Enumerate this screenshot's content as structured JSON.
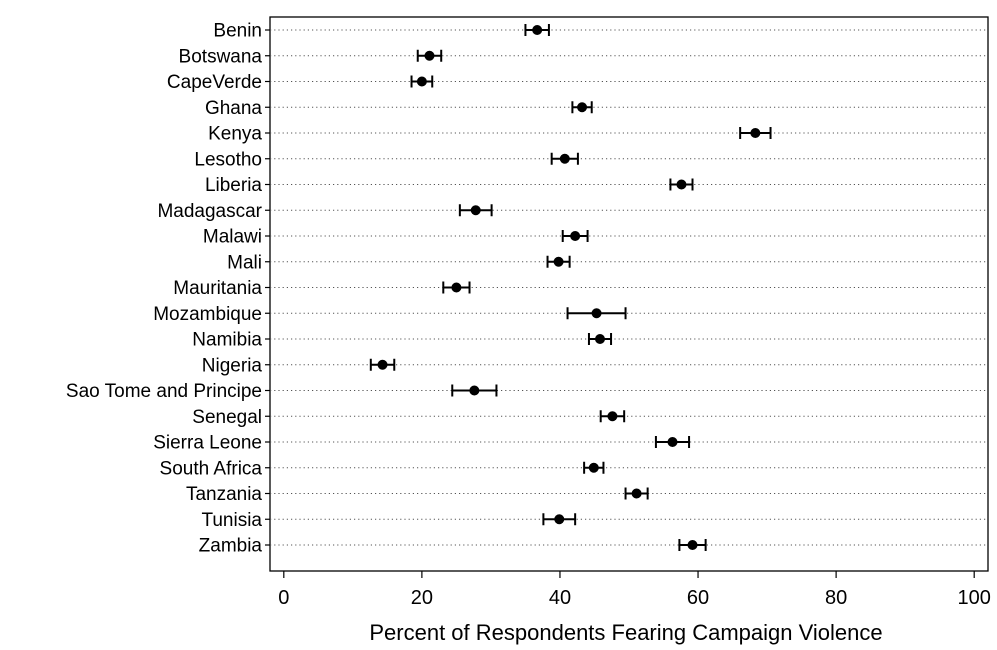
{
  "chart_data": {
    "type": "scatter",
    "title": "",
    "xlabel": "Percent of Respondents Fearing Campaign Violence",
    "ylabel": "",
    "xlim": [
      -2,
      102
    ],
    "xticks": [
      0,
      20,
      40,
      60,
      80,
      100
    ],
    "xtick_labels": [
      "0",
      "20",
      "40",
      "60",
      "80",
      "100"
    ],
    "grid": "horizontal dotted lines",
    "error_bars": true,
    "categories": [
      "Benin",
      "Botswana",
      "CapeVerde",
      "Ghana",
      "Kenya",
      "Lesotho",
      "Liberia",
      "Madagascar",
      "Malawi",
      "Mali",
      "Mauritania",
      "Mozambique",
      "Namibia",
      "Nigeria",
      "Sao Tome and Principe",
      "Senegal",
      "Sierra Leone",
      "South Africa",
      "Tanzania",
      "Tunisia",
      "Zambia"
    ],
    "values": [
      36.7,
      21.1,
      20.0,
      43.2,
      68.3,
      40.7,
      57.6,
      27.8,
      42.2,
      39.8,
      25.0,
      45.3,
      45.8,
      14.3,
      27.6,
      47.6,
      56.3,
      44.9,
      51.1,
      39.9,
      59.2
    ],
    "ci_low": [
      35.0,
      19.4,
      18.5,
      41.8,
      66.1,
      38.8,
      56.0,
      25.5,
      40.4,
      38.2,
      23.1,
      41.1,
      44.2,
      12.6,
      24.4,
      45.9,
      53.9,
      43.5,
      49.5,
      37.6,
      57.3
    ],
    "ci_high": [
      38.4,
      22.8,
      21.5,
      44.6,
      70.5,
      42.6,
      59.2,
      30.1,
      44.0,
      41.4,
      26.9,
      49.5,
      47.4,
      16.0,
      30.8,
      49.3,
      58.7,
      46.3,
      52.7,
      42.2,
      61.1
    ],
    "colors": {
      "marker": "#000000",
      "gridline": "#555555",
      "axis": "#000000"
    }
  }
}
